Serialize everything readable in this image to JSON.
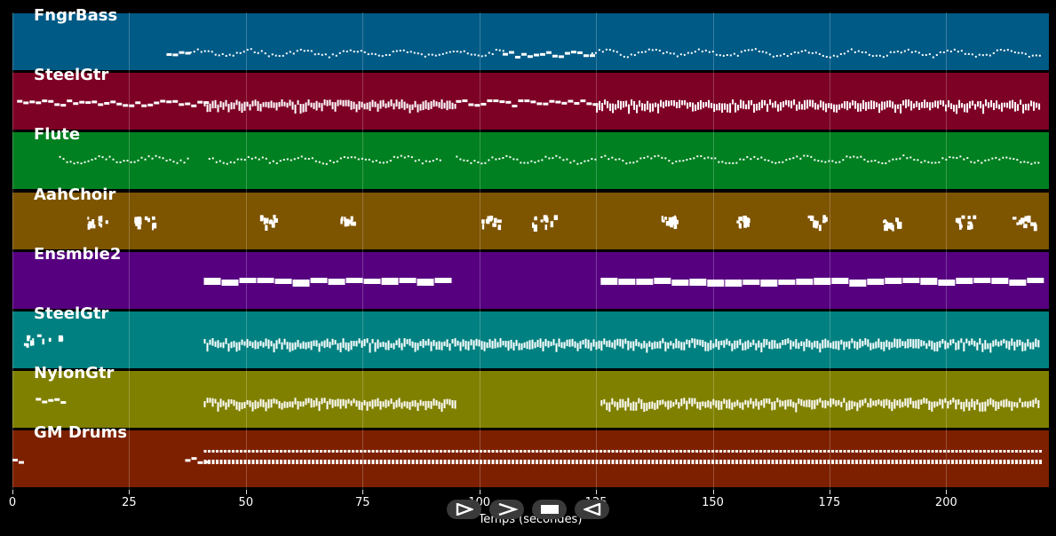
{
  "tracks": [
    {
      "name": "FngrBass",
      "color": "#005a86"
    },
    {
      "name": "SteelGtr",
      "color": "#7d0025"
    },
    {
      "name": "Flute",
      "color": "#008020"
    },
    {
      "name": "AahChoir",
      "color": "#7d5400"
    },
    {
      "name": "Ensmble2",
      "color": "#560080"
    },
    {
      "name": "SteelGtr",
      "color": "#008080"
    },
    {
      "name": "NylonGtr",
      "color": "#808000"
    },
    {
      "name": "GM Drums",
      "color": "#7d2000"
    }
  ],
  "axis": {
    "label": "Temps (secondes)",
    "ticks": [
      "0",
      "25",
      "50",
      "75",
      "100",
      "125",
      "150",
      "175",
      "200"
    ],
    "max_seconds": 222
  },
  "transport": {
    "buttons": [
      {
        "name": "play-button",
        "icon": "play-icon"
      },
      {
        "name": "forward-button",
        "icon": "chevron-right-icon"
      },
      {
        "name": "stop-button",
        "icon": "stop-icon"
      },
      {
        "name": "rewind-button",
        "icon": "rewind-icon"
      }
    ]
  }
}
